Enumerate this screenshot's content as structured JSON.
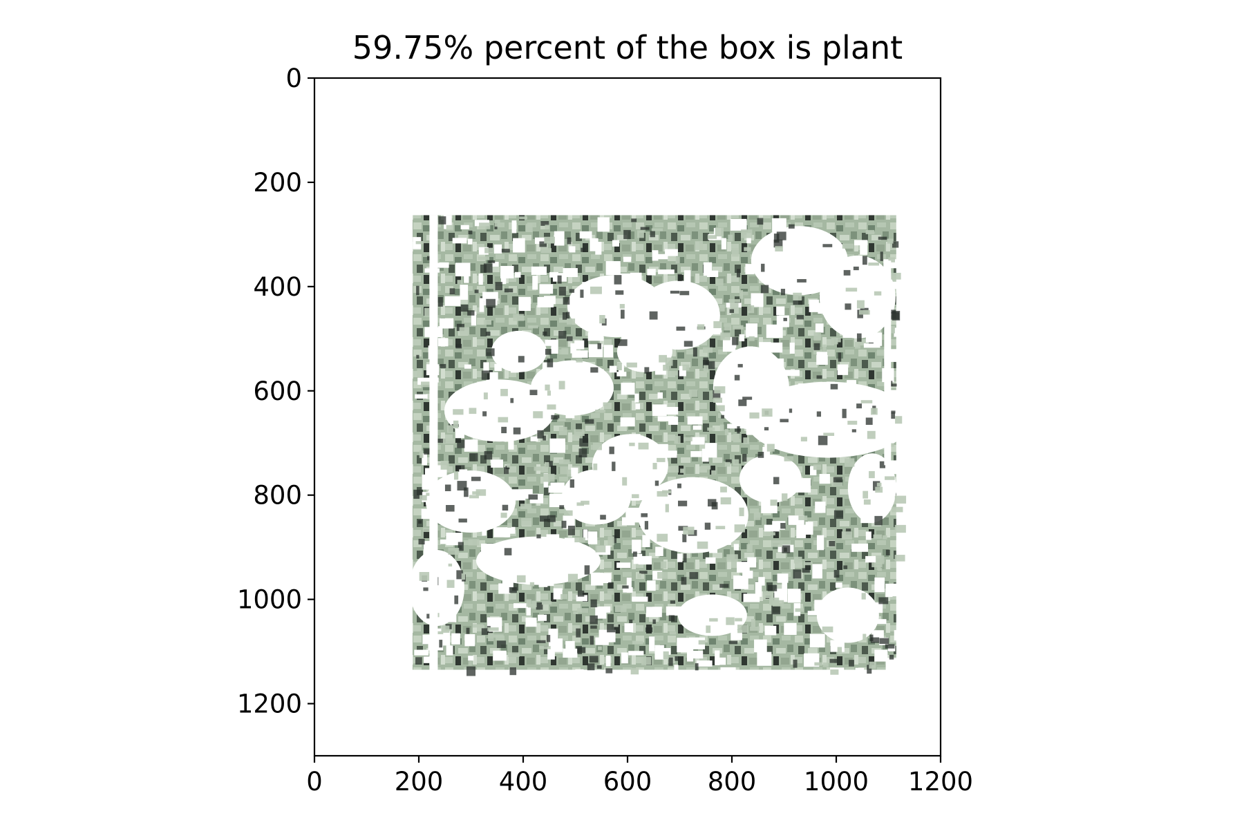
{
  "chart_data": {
    "type": "image",
    "title": "59.75% percent of the box is plant",
    "plant_percent": 59.75,
    "xlabel": "",
    "ylabel": "",
    "xlim": [
      0,
      1200
    ],
    "ylim": [
      1300,
      0
    ],
    "x_ticks": [
      0,
      200,
      400,
      600,
      800,
      1000,
      1200
    ],
    "y_ticks": [
      0,
      200,
      400,
      600,
      800,
      1000,
      1200
    ],
    "x_tick_labels": [
      "0",
      "200",
      "400",
      "600",
      "800",
      "1000",
      "1200"
    ],
    "y_tick_labels": [
      "0",
      "200",
      "400",
      "600",
      "800",
      "1000",
      "1200"
    ],
    "grid": false,
    "image_region": {
      "x_range": [
        188,
        1115
      ],
      "y_range": [
        263,
        1135
      ],
      "content": "segmented plant canopy (green foliage on white background)"
    }
  },
  "colors": {
    "plant_light": "#b9c9b6",
    "plant_mid": "#8fa58c",
    "plant_dark": "#5d6f5b",
    "shadow": "#2a302c",
    "background": "#ffffff",
    "axis": "#000000"
  }
}
